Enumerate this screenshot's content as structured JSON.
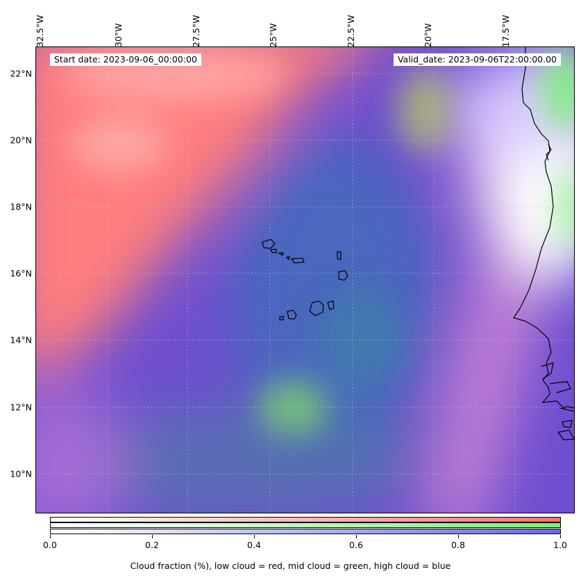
{
  "map": {
    "start_date": "Start date: 2023-09-06_00:00:00",
    "valid_date": "Valid_date: 2023-09-06T22:00:00.00",
    "longitude_labels": [
      "32.5°W",
      "30°W",
      "27.5°W",
      "25°W",
      "22.5°W",
      "20°W",
      "17.5°W"
    ],
    "latitude_labels": [
      "22°N",
      "20°N",
      "18°N",
      "16°N",
      "14°N",
      "12°N",
      "10°N"
    ],
    "colors": {
      "low_cloud": "#ff7f7f",
      "mid_cloud": "#80ee80",
      "high_cloud": "#6a5ad8"
    }
  },
  "colorbar": {
    "tick_labels": [
      "0.0",
      "0.2",
      "0.4",
      "0.6",
      "0.8",
      "1.0"
    ],
    "caption": "Cloud fraction (%), low cloud = red, mid cloud = green, high cloud = blue",
    "colors": {
      "low": "#ff6f6f",
      "mid": "#7aef7a",
      "high": "#6a6ae0"
    }
  }
}
